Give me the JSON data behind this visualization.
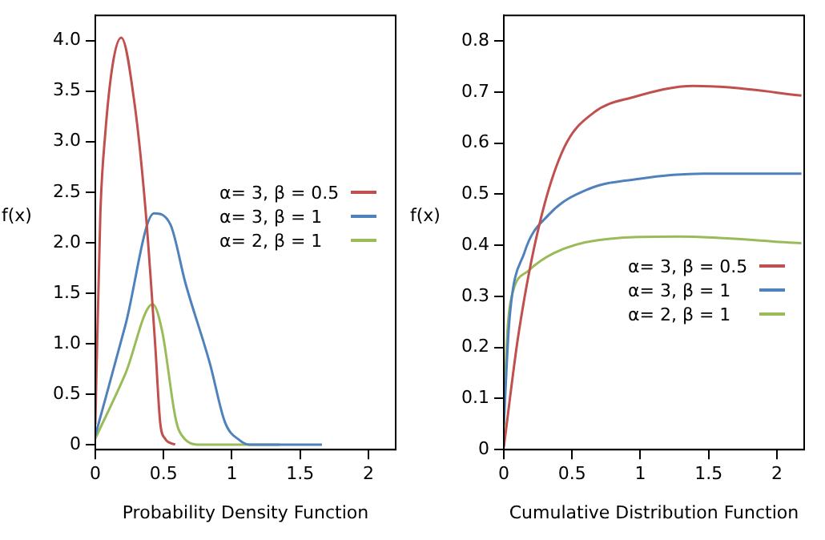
{
  "chart_data": [
    {
      "type": "line",
      "xlabel": "Probability Density Function",
      "ylabel": "f(x)",
      "xlim": [
        0,
        2.2
      ],
      "ylim": [
        -0.05,
        4.25
      ],
      "xticks": [
        0,
        0.5,
        1,
        1.5,
        2
      ],
      "yticks": [
        0,
        0.5,
        {
          "value": 1,
          "label": "1.0"
        },
        1.5,
        {
          "value": 2,
          "label": "2.0"
        },
        2.5,
        {
          "value": 3,
          "label": "3.0"
        },
        3.5,
        {
          "value": 4,
          "label": "4.0"
        }
      ],
      "grid": false,
      "legend": "right",
      "marker": "none",
      "line_style": "solid",
      "series": [
        {
          "name": "α= 3, β = 0.5",
          "color": "#c0504d",
          "x": [
            0,
            0.037,
            0.073,
            0.128,
            0.19,
            0.29,
            0.37,
            0.44,
            0.475,
            0.51,
            0.585
          ],
          "values": [
            0.2,
            2.29,
            3.08,
            3.77,
            4.03,
            3.35,
            2.29,
            0.96,
            0.22,
            0.06,
            0
          ]
        },
        {
          "name": "α= 3, β = 1",
          "color": "#4f81bd",
          "x": [
            0,
            0.22,
            0.43,
            0.55,
            0.66,
            0.84,
            0.95,
            1.06,
            1.13,
            1.66
          ],
          "values": [
            0.09,
            1.18,
            2.29,
            2.18,
            1.6,
            0.8,
            0.22,
            0.04,
            0,
            0
          ]
        },
        {
          "name": "α= 2, β = 1",
          "color": "#9bbb59",
          "x": [
            0,
            0.22,
            0.42,
            0.49,
            0.585,
            0.62,
            0.77,
            1.35
          ],
          "values": [
            0.06,
            0.7,
            1.39,
            1.12,
            0.28,
            0.12,
            0,
            0
          ]
        }
      ]
    },
    {
      "type": "line",
      "xlabel": "Cumulative Distribution Function",
      "ylabel": "f(x)",
      "xlim": [
        0,
        2.2
      ],
      "ylim": [
        0,
        0.85
      ],
      "xticks": [
        0,
        0.5,
        1,
        1.5,
        2
      ],
      "yticks": [
        0,
        0.1,
        0.2,
        0.3,
        0.4,
        0.5,
        0.6,
        0.7,
        0.8
      ],
      "grid": false,
      "legend": "bottom right",
      "marker": "none",
      "line_style": "solid",
      "series": [
        {
          "name": "α= 3, β = 0.5",
          "color": "#c0504d",
          "x": [
            0,
            0.11,
            0.26,
            0.44,
            0.66,
            0.95,
            1.39,
            1.65,
            2.18
          ],
          "values": [
            0.005,
            0.23,
            0.44,
            0.59,
            0.66,
            0.69,
            0.712,
            0.709,
            0.693
          ]
        },
        {
          "name": "α= 3, β = 1",
          "color": "#4f81bd",
          "x": [
            0,
            0.04,
            0.15,
            0.33,
            0.62,
            0.99,
            1.46,
            2.18
          ],
          "values": [
            0.05,
            0.25,
            0.385,
            0.46,
            0.51,
            0.53,
            0.54,
            0.54
          ]
        },
        {
          "name": "α= 2, β = 1",
          "color": "#9bbb59",
          "x": [
            0,
            0.02,
            0.05,
            0.18,
            0.37,
            0.69,
            1.28,
            2.18
          ],
          "values": [
            0.04,
            0.2,
            0.29,
            0.35,
            0.385,
            0.41,
            0.417,
            0.404
          ]
        }
      ]
    }
  ]
}
